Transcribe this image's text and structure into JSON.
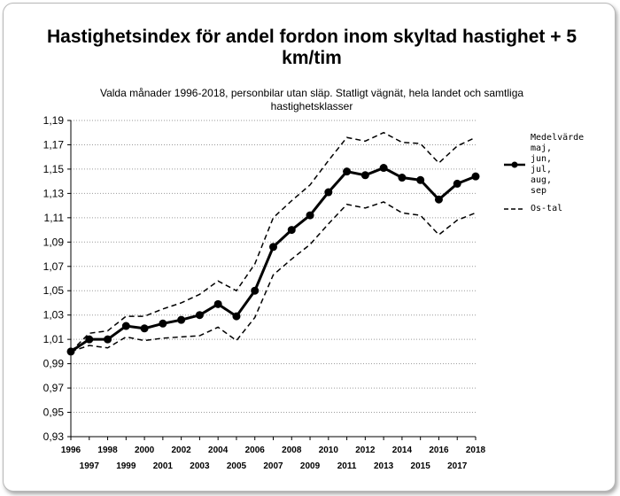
{
  "chart_data": {
    "type": "line",
    "title_lines": [
      "Hastighetsindex för andel fordon inom skyltad hastighet + 5",
      "km/tim"
    ],
    "subtitle": "Valda månader 1996-2018, personbilar utan släp. Statligt vägnät, hela landet och samtliga hastighetsklasser",
    "x": [
      1996,
      1997,
      1998,
      1999,
      2000,
      2001,
      2002,
      2003,
      2004,
      2005,
      2006,
      2007,
      2008,
      2009,
      2010,
      2011,
      2012,
      2013,
      2014,
      2015,
      2016,
      2017,
      2018
    ],
    "x_tick_labels": [
      "1996",
      "1997",
      "1998",
      "1999",
      "2000",
      "2001",
      "2002",
      "2003",
      "2004",
      "2005",
      "2006",
      "2007",
      "2008",
      "2009",
      "2010",
      "2011",
      "2012",
      "2013",
      "2014",
      "2015",
      "2016",
      "2017",
      "2018"
    ],
    "xlim": [
      1996,
      2018
    ],
    "ylim": [
      0.93,
      1.19
    ],
    "y_ticks": [
      "0,93",
      "0,95",
      "0,97",
      "0,99",
      "1,01",
      "1,03",
      "1,05",
      "1,07",
      "1,09",
      "1,11",
      "1,13",
      "1,15",
      "1,17",
      "1,19"
    ],
    "grid": "horizontal-dotted",
    "legend_position": "right",
    "series": [
      {
        "name": "Medelvärde maj, jun, jul, aug, sep",
        "legend_lines": [
          "Medelvärde",
          "maj,",
          "jun,",
          "jul,",
          "aug,",
          "sep"
        ],
        "style": "solid-markers",
        "values": [
          1.0,
          1.01,
          1.01,
          1.021,
          1.019,
          1.023,
          1.026,
          1.03,
          1.039,
          1.029,
          1.05,
          1.086,
          1.1,
          1.112,
          1.131,
          1.148,
          1.145,
          1.151,
          1.143,
          1.141,
          1.125,
          1.138,
          1.144
        ]
      },
      {
        "name": "Os-tal upper",
        "style": "dashed",
        "values": [
          1.0,
          1.015,
          1.017,
          1.029,
          1.029,
          1.035,
          1.04,
          1.047,
          1.058,
          1.05,
          1.072,
          1.11,
          1.124,
          1.137,
          1.157,
          1.176,
          1.173,
          1.18,
          1.172,
          1.171,
          1.155,
          1.169,
          1.176
        ]
      },
      {
        "name": "Os-tal lower",
        "style": "dashed",
        "values": [
          1.0,
          1.005,
          1.003,
          1.012,
          1.009,
          1.011,
          1.012,
          1.013,
          1.02,
          1.009,
          1.028,
          1.063,
          1.076,
          1.088,
          1.105,
          1.121,
          1.118,
          1.123,
          1.114,
          1.112,
          1.096,
          1.108,
          1.114
        ]
      }
    ],
    "legend": [
      {
        "lines": [
          "Medelvärde",
          "maj,",
          "jun,",
          "jul,",
          "aug,",
          "sep"
        ],
        "style": "solid-markers"
      },
      {
        "lines": [
          "Os-tal"
        ],
        "style": "dashed"
      }
    ],
    "colors": {
      "line": "#000000",
      "grid": "#9a9a9a",
      "axis": "#000000"
    }
  }
}
